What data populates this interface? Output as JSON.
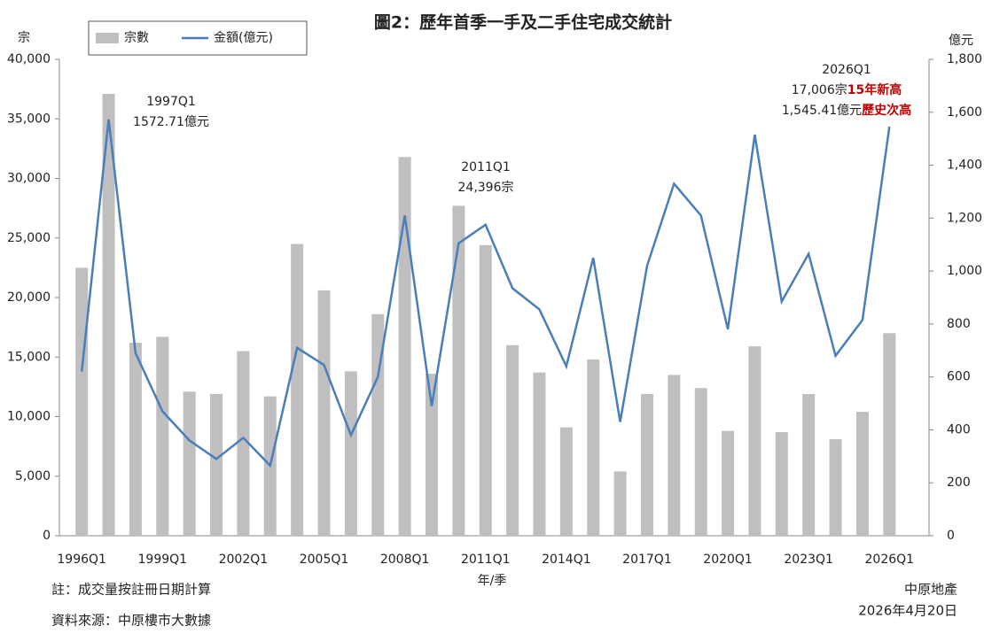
{
  "chart_data": {
    "type": "bar-line",
    "title": "圖2：歷年首季一手及二手住宅成交統計",
    "y_label": "宗",
    "y2_label": "億元",
    "x_label": "年/季",
    "categories": [
      "1996Q1",
      null,
      null,
      "1999Q1",
      null,
      null,
      "2002Q1",
      null,
      null,
      "2005Q1",
      null,
      null,
      "2008Q1",
      null,
      null,
      "2011Q1",
      null,
      null,
      "2014Q1",
      null,
      null,
      "2017Q1",
      null,
      null,
      "2020Q1",
      null,
      null,
      "2023Q1",
      null,
      null,
      "2026Q1"
    ],
    "series": [
      {
        "name": "宗數",
        "type": "bar",
        "color": "#bfbfbf",
        "values": [
          22500,
          37100,
          16200,
          16700,
          12100,
          11900,
          15500,
          11700,
          24500,
          20600,
          13800,
          18600,
          31800,
          13600,
          27700,
          24396,
          16000,
          13700,
          9100,
          14800,
          5400,
          11900,
          13500,
          12400,
          8800,
          15900,
          8700,
          11900,
          8100,
          10400,
          17006
        ]
      },
      {
        "name": "金額(億元)",
        "type": "line",
        "color": "#4a7ebb",
        "axis": "y2",
        "values": [
          620,
          1572.71,
          690,
          470,
          360,
          290,
          370,
          265,
          710,
          645,
          380,
          600,
          1210,
          490,
          1105,
          1175,
          935,
          855,
          640,
          1050,
          430,
          1020,
          1330,
          1210,
          780,
          1515,
          885,
          1065,
          680,
          815,
          1545.41
        ]
      }
    ],
    "ylim": [
      0,
      40000
    ],
    "yticks": [
      0,
      {
        "value": 5000,
        "label": "5,000"
      },
      {
        "value": 10000,
        "label": "10,000"
      },
      {
        "value": 15000,
        "label": "15,000"
      },
      {
        "value": 20000,
        "label": "20,000"
      },
      {
        "value": 25000,
        "label": "25,000"
      },
      {
        "value": 30000,
        "label": "30,000"
      },
      {
        "value": 35000,
        "label": "35,000"
      },
      {
        "value": 40000,
        "label": "40,000"
      }
    ],
    "y2lim": [
      0,
      1800
    ],
    "y2ticks": [
      0,
      200,
      400,
      600,
      800,
      {
        "value": 1000,
        "label": "1,000"
      },
      {
        "value": 1200,
        "label": "1,200"
      },
      {
        "value": 1400,
        "label": "1,400"
      },
      {
        "value": 1600,
        "label": "1,600"
      },
      {
        "value": 1800,
        "label": "1,800"
      }
    ],
    "highlight_color": "#c00000",
    "annotations": [
      {
        "lines": [
          [
            "1997Q1"
          ],
          [
            "1572.71億元"
          ]
        ]
      },
      {
        "lines": [
          [
            "2011Q1"
          ],
          [
            "24,396宗"
          ]
        ]
      },
      {
        "lines": [
          [
            "2026Q1"
          ],
          [
            "17,006宗",
            "15年新高"
          ],
          [
            "1,545.41億元",
            "歷史次高"
          ]
        ]
      }
    ],
    "notes": [
      "註：成交量按註冊日期計算",
      "資料來源：中原樓市大數據"
    ],
    "source": [
      "中原地產",
      "2026年4月20日"
    ]
  }
}
